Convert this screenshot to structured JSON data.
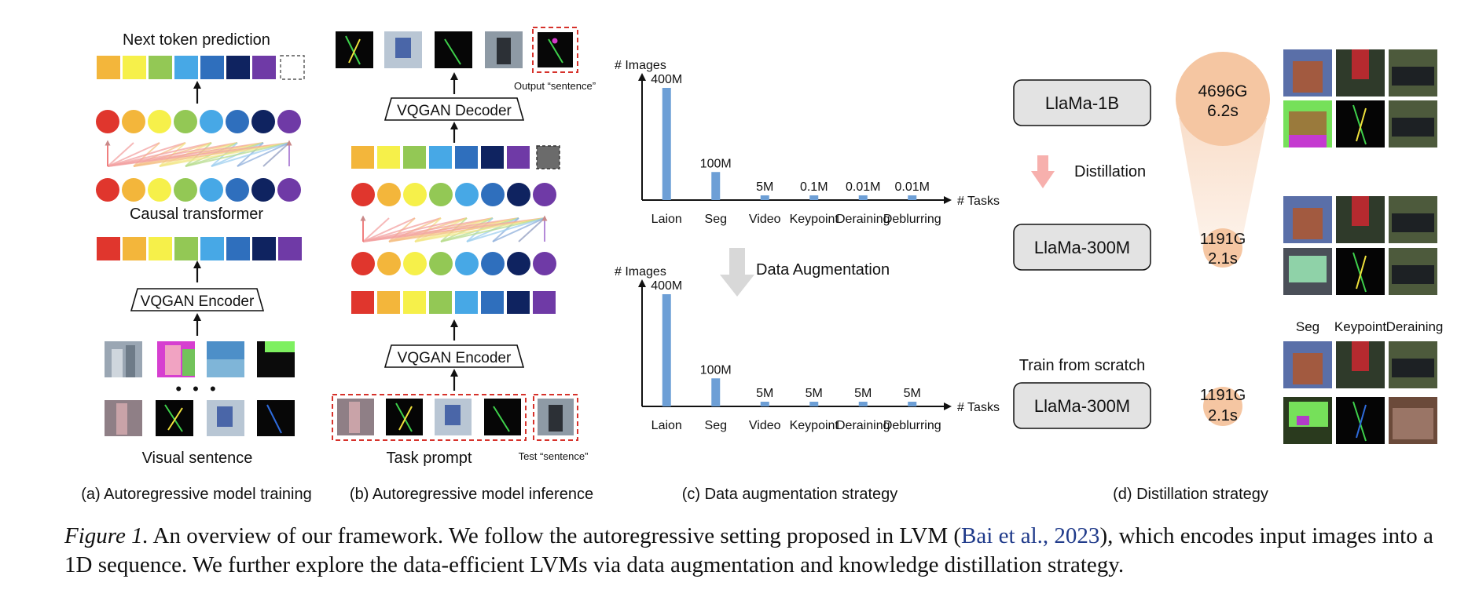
{
  "panel_a": {
    "title": "Next token prediction",
    "transformer_label": "Causal transformer",
    "encoder_label": "VQGAN Encoder",
    "ellipsis": "• • •",
    "bottom_label": "Visual sentence",
    "caption": "(a) Autoregressive model training"
  },
  "panel_b": {
    "decoder_label": "VQGAN Decoder",
    "encoder_label": "VQGAN Encoder",
    "output_label": "Output “sentence”",
    "task_prompt_label": "Task prompt",
    "test_label": "Test “sentence”",
    "caption": "(b) Autoregressive model inference"
  },
  "panel_c": {
    "middle_label": "Data Augmentation",
    "caption": "(c) Data augmentation strategy"
  },
  "panel_d": {
    "model_large": "LlaMa-1B",
    "model_small": "LlaMa-300M",
    "model_scratch": "LlaMa-300M",
    "distill_label": "Distillation",
    "scratch_label": "Train from scratch",
    "large_cost": "4696G",
    "large_time": "6.2s",
    "small_cost": "1191G",
    "small_time": "2.1s",
    "scratch_cost": "1191G",
    "scratch_time": "2.1s",
    "col_seg": "Seg",
    "col_keypoint": "Keypoint",
    "col_deraining": "Deraining",
    "caption": "(d) Distillation strategy"
  },
  "token_colors": [
    "#f3b63b",
    "#f6f04a",
    "#93c855",
    "#47a8e6",
    "#2f6fbd",
    "#0f2360",
    "#6f3aa6"
  ],
  "colors": {
    "bar": "#6d9fd6",
    "circle": "#f5c6a2",
    "red": "#e0362d",
    "arrow_pink": "#f7a8a8"
  },
  "chart_data": [
    {
      "type": "bar",
      "title": "",
      "xlabel": "# Tasks",
      "ylabel": "# Images",
      "categories": [
        "Laion",
        "Seg",
        "Video",
        "Keypoint",
        "Deraining",
        "Deblurring"
      ],
      "values": [
        400,
        100,
        5,
        0.1,
        0.01,
        0.01
      ],
      "value_labels": [
        "400M",
        "100M",
        "5M",
        "0.1M",
        "0.01M",
        "0.01M"
      ],
      "unit": "M"
    },
    {
      "type": "bar",
      "title": "",
      "xlabel": "# Tasks",
      "ylabel": "# Images",
      "categories": [
        "Laion",
        "Seg",
        "Video",
        "Keypoint",
        "Deraining",
        "Deblurring"
      ],
      "values": [
        400,
        100,
        5,
        5,
        5,
        5
      ],
      "value_labels": [
        "400M",
        "100M",
        "5M",
        "5M",
        "5M",
        "5M"
      ],
      "unit": "M"
    }
  ],
  "caption": {
    "lead": "Figure 1.",
    "text1": " An overview of our framework. We follow the autoregressive setting proposed in LVM (",
    "cite": "Bai et al., 2023",
    "text2": "), which encodes input images into a 1D sequence. We further explore the data-efficient LVMs via data augmentation and knowledge distillation strategy."
  }
}
